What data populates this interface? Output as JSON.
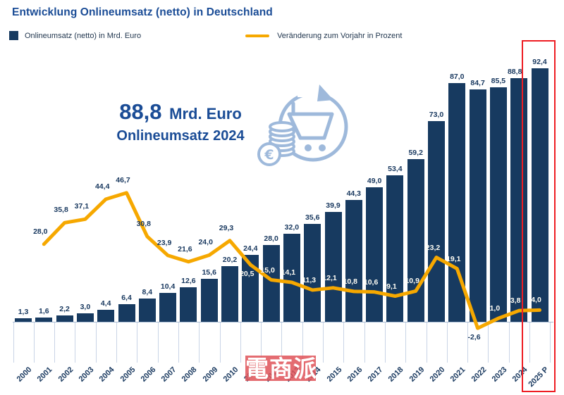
{
  "title": "Entwicklung Onlineumsatz (netto) in Deutschland",
  "legend": {
    "bar_label": "Onlineumsatz (netto) in Mrd. Euro",
    "line_label": "Veränderung zum Vorjahr in Prozent"
  },
  "infographic": {
    "value": "88,8",
    "unit": "Mrd. Euro",
    "caption": "Onlineumsatz 2024",
    "icon": "shopping-cart-coins-euro-icon"
  },
  "watermark": {
    "text": "電商派"
  },
  "highlight": {
    "year": "2025 P",
    "color": "#EE1D23"
  },
  "colors": {
    "bar": "#173A60",
    "line": "#F6A800",
    "title": "#1A4C96",
    "label_dark": "#17375E",
    "label_light": "#FFFDF4",
    "icon_blue": "#9EB9DB",
    "grid": "#C9D4E6",
    "baseline": "#A9BCD4"
  },
  "chart_data": {
    "type": "bar+line",
    "title": "Entwicklung Onlineumsatz (netto) in Deutschland",
    "categories": [
      "2000",
      "2001",
      "2002",
      "2003",
      "2004",
      "2005",
      "2006",
      "2007",
      "2008",
      "2009",
      "2010",
      "2011",
      "2012",
      "2013",
      "2014",
      "2015",
      "2016",
      "2017",
      "2018",
      "2019",
      "2020",
      "2021",
      "2022",
      "2023",
      "2024",
      "2025 P"
    ],
    "series": [
      {
        "name": "Onlineumsatz (netto) in Mrd. Euro",
        "type": "bar",
        "values": [
          1.3,
          1.6,
          2.2,
          3.0,
          4.4,
          6.4,
          8.4,
          10.4,
          12.6,
          15.6,
          20.2,
          24.4,
          28.0,
          32.0,
          35.6,
          39.9,
          44.3,
          49.0,
          53.4,
          59.2,
          73.0,
          87.0,
          84.7,
          85.5,
          88.8,
          92.4
        ],
        "labels": [
          "1,3",
          "1,6",
          "2,2",
          "3,0",
          "4,4",
          "6,4",
          "8,4",
          "10,4",
          "12,6",
          "15,6",
          "20,2",
          "24,4",
          "28,0",
          "32,0",
          "35,6",
          "39,9",
          "44,3",
          "49,0",
          "53,4",
          "59,2",
          "73,0",
          "87,0",
          "84,7",
          "85,5",
          "88,8",
          "92,4"
        ]
      },
      {
        "name": "Veränderung zum Vorjahr in Prozent",
        "type": "line",
        "start_category_index": 1,
        "values": [
          28.0,
          35.8,
          37.1,
          44.4,
          46.7,
          30.8,
          23.9,
          21.6,
          24.0,
          29.3,
          20.5,
          15.0,
          14.1,
          11.3,
          12.1,
          10.8,
          10.6,
          9.1,
          10.9,
          23.2,
          19.1,
          -2.6,
          1.0,
          3.8,
          4.0
        ],
        "labels": [
          "28,0",
          "35,8",
          "37,1",
          "44,4",
          "46,7",
          "30,8",
          "23,9",
          "21,6",
          "24,0",
          "29,3",
          "20,5",
          "15,0",
          "14,1",
          "11,3",
          "12,1",
          "10,8",
          "10,6",
          "9,1",
          "10,9",
          "23,2",
          "19,1",
          "-2,6",
          "1,0",
          "3,8",
          "4,0"
        ],
        "label_style": [
          "dark",
          "dark",
          "dark",
          "dark",
          "dark",
          "dark",
          "dark",
          "dark",
          "dark",
          "dark",
          "light",
          "light",
          "light",
          "light",
          "light",
          "light",
          "light",
          "light",
          "light",
          "light",
          "light",
          "dark",
          "light",
          "light",
          "light"
        ],
        "label_position": [
          "above",
          "above",
          "above",
          "above",
          "above",
          "above",
          "above",
          "above",
          "above",
          "above",
          "below",
          "above",
          "above",
          "above",
          "above",
          "above",
          "above",
          "above",
          "above",
          "above",
          "above",
          "below",
          "above",
          "above",
          "above"
        ]
      }
    ],
    "bar_axis": {
      "min": 0,
      "max": 95,
      "unit": "Mrd. Euro",
      "gridlines": false
    },
    "line_axis": {
      "unit": "%",
      "shares_scale_with_bars": true
    },
    "legend_position": "top-left",
    "highlighted_category": "2025 P"
  }
}
